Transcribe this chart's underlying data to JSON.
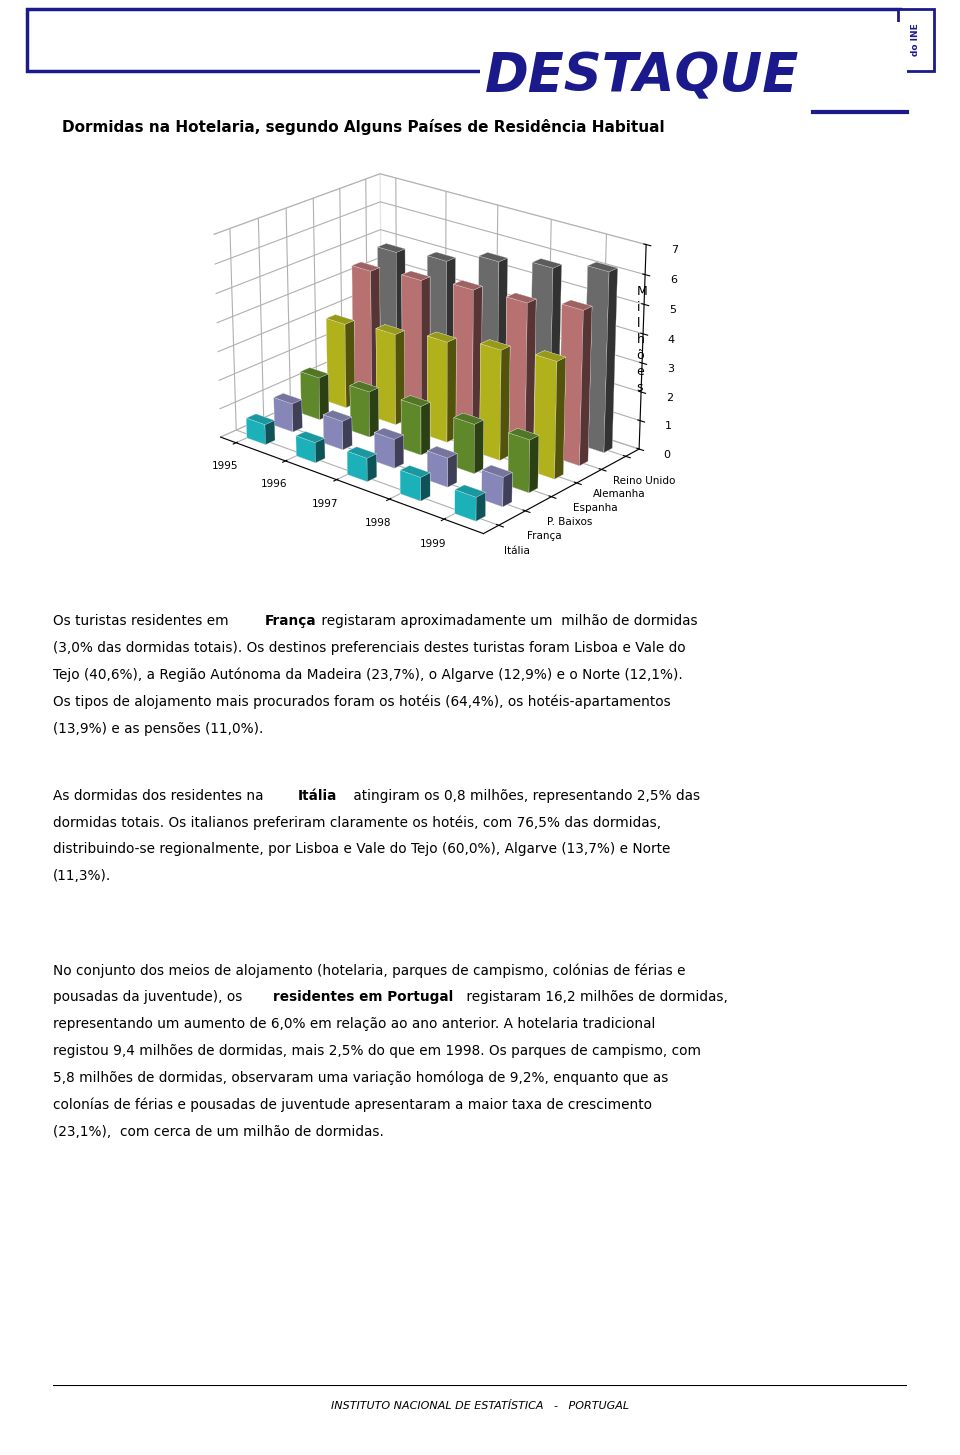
{
  "title": "Dormidas na Hotelaria, segundo Alguns Países de Residência Habitual",
  "ylabel_chars": [
    "M",
    "i",
    "l",
    "h",
    "õ",
    "e",
    "s"
  ],
  "years": [
    1995,
    1996,
    1997,
    1998,
    1999
  ],
  "countries": [
    "Reino Unido",
    "Alemanha",
    "Espanha",
    "P. Baixos",
    "França",
    "Itália"
  ],
  "bar_colors": [
    "#787878",
    "#d08080",
    "#c8c820",
    "#6a9a30",
    "#9898d0",
    "#20c8d0"
  ],
  "data": {
    "Reino Unido": [
      4.8,
      5.0,
      5.5,
      5.8,
      6.2
    ],
    "Alemanha": [
      4.5,
      4.7,
      4.9,
      5.0,
      5.3
    ],
    "Espanha": [
      3.0,
      3.2,
      3.5,
      3.8,
      4.0
    ],
    "P. Baixos": [
      1.5,
      1.6,
      1.7,
      1.7,
      1.8
    ],
    "França": [
      1.0,
      1.0,
      1.0,
      1.0,
      1.0
    ],
    "Itália": [
      0.7,
      0.7,
      0.8,
      0.8,
      0.8
    ]
  },
  "zlim": [
    0,
    7
  ],
  "zticks": [
    0,
    1,
    2,
    3,
    4,
    5,
    6,
    7
  ],
  "header_border": "#1a1a8c",
  "destaque_color": "#1a1a8c",
  "para1": "Os turistas residentes em França registaram aproximadamente um  milhão de dormidas\n(3,0% das dormidas totais). Os destinos preferenciais destes turistas foram Lisboa e Vale do\nTejo (40,6%), a Região Autónoma da Madeira (23,7%), o Algarve (12,9%) e o Norte (12,1%).\nOs tipos de alojamento mais procurados foram os hotéis (64,4%), os hotéis-apartamentos\n(13,9%) e as pensões (11,0%).",
  "para1_bold": "França",
  "para2": "As dormidas dos residentes na Itália atingiram os 0,8 milhões, representando 2,5% das\ndormidas totais. Os italianos preferiram claramente os hotéis, com 76,5% das dormidas,\ndistribuindo-se regionalmente, por Lisboa e Vale do Tejo (60,0%), Algarve (13,7%) e Norte\n(11,3%).",
  "para2_bold": "Itália",
  "para3": "No conjunto dos meios de alojamento (hotelaria, parques de campismo, colónias de férias e\npousadas da juventude), os residentes em Portugal registaram 16,2 milhões de dormidas,\nrepresentando um aumento de 6,0% em relação ao ano anterior. A hotelaria tradicional\nregistou 9,4 milhões de dormidas, mais 2,5% do que em 1998. Os parques de campismo, com\n5,8 milhões de dormidas, observaram uma variação homóloga de 9,2%, enquanto que as\ncolonías de férias e pousadas de juventude apresentaram a maior taxa de crescimento\n(23,1%),  com cerca de um milhão de dormidas.",
  "para3_bold": "residentes em Portugal",
  "footer_text": "INSTITUTO NACIONAL DE ESTATÍSTICA   -   PORTUGAL"
}
